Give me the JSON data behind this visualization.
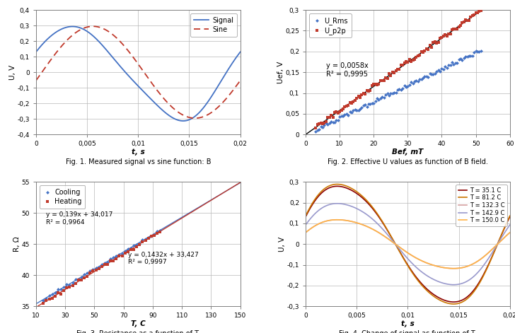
{
  "fig1": {
    "xlabel": "t, s",
    "ylabel": "U, V",
    "xlim": [
      0,
      0.02
    ],
    "ylim": [
      -0.4,
      0.4
    ],
    "xticks": [
      0,
      0.005,
      0.01,
      0.015,
      0.02
    ],
    "xtick_labels": [
      "0",
      "0,005",
      "0,01",
      "0,015",
      "0,02"
    ],
    "yticks": [
      -0.4,
      -0.3,
      -0.2,
      -0.1,
      0,
      0.1,
      0.2,
      0.3,
      0.4
    ],
    "ytick_labels": [
      "-0,4",
      "-0,3",
      "-0,2",
      "-0,1",
      "0",
      "0,1",
      "0,2",
      "0,3",
      "0,4"
    ],
    "signal_color": "#4472c4",
    "sine_color": "#c0392b",
    "signal_amplitude": 0.295,
    "sine_amplitude": 0.295,
    "frequency": 50,
    "signal_phase": 0.38,
    "sine_phase": -0.18,
    "legend_labels": [
      "Signal",
      "Sine"
    ],
    "caption": "Fig. 1. Measured signal vs sine function: B"
  },
  "fig2": {
    "xlabel": "Bef, mT",
    "ylabel": "Uef, V",
    "xlim": [
      0,
      60
    ],
    "ylim": [
      0,
      0.3
    ],
    "xticks": [
      0,
      10,
      20,
      30,
      40,
      50,
      60
    ],
    "yticks": [
      0,
      0.05,
      0.1,
      0.15,
      0.2,
      0.25,
      0.3
    ],
    "ytick_labels": [
      "0",
      "0,05",
      "0,1",
      "0,15",
      "0,2",
      "0,25",
      "0,3"
    ],
    "urms_color": "#4472c4",
    "up2p_color": "#c0392b",
    "slope_urms": 0.00395,
    "slope_up2p": 0.0058,
    "annotation": "y = 0,0058x\nR² = 0,9995",
    "legend_labels": [
      "U_Rms",
      "U_p2p"
    ],
    "caption": "Fig. 2. Effective U values as function of B field."
  },
  "fig3": {
    "xlabel": "T, C",
    "ylabel": "R, Ω",
    "xlim": [
      10,
      150
    ],
    "ylim": [
      35,
      55
    ],
    "xticks": [
      10,
      30,
      50,
      70,
      90,
      110,
      130,
      150
    ],
    "yticks": [
      35,
      40,
      45,
      50,
      55
    ],
    "cooling_color": "#4472c4",
    "heating_color": "#c0392b",
    "slope_cooling": 0.139,
    "intercept_cooling": 34.017,
    "slope_heating": 0.1432,
    "intercept_heating": 33.427,
    "ann_cooling": "y = 0,139x + 34,017\nR² = 0,9964",
    "ann_heating": "y = 0,1432x + 33,427\nR² = 0,9997",
    "legend_labels": [
      "Cooling",
      "Heating"
    ],
    "caption": "Fig. 3. Resistance as a function of T."
  },
  "fig4": {
    "xlabel": "t, s",
    "ylabel": "U, V",
    "xlim": [
      0,
      0.02
    ],
    "ylim": [
      -0.3,
      0.3
    ],
    "xticks": [
      0,
      0.005,
      0.01,
      0.015,
      0.02
    ],
    "xtick_labels": [
      "0",
      "0,005",
      "0,01",
      "0,015",
      "0,02"
    ],
    "yticks": [
      -0.3,
      -0.2,
      -0.1,
      0,
      0.1,
      0.2,
      0.3
    ],
    "ytick_labels": [
      "-0,3",
      "-0,2",
      "-0,1",
      "0",
      "0,1",
      "0,2",
      "0,3"
    ],
    "temperatures": [
      35.1,
      81.2,
      132.3,
      142.9,
      150.0
    ],
    "amplitudes": [
      0.295,
      0.295,
      0.12,
      0.2,
      0.12
    ],
    "colors": [
      "#8b0000",
      "#cc7700",
      "#d4a0a0",
      "#9999cc",
      "#ffb347"
    ],
    "legend_labels": [
      "T = 35.1 C",
      "T = 81.2 C",
      "T = 132.3 C",
      "T = 142.9 C",
      "T = 150.0 C"
    ],
    "frequency": 50,
    "caption": "Fig. 4. Change of signal as function of T."
  }
}
